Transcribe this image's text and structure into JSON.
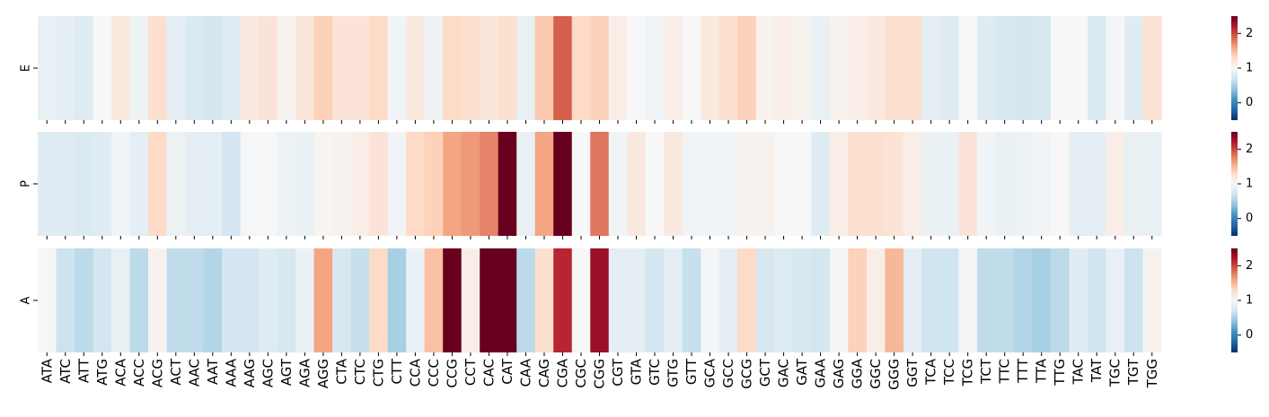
{
  "chart_data": {
    "type": "heatmap",
    "title": "",
    "xlabel": "",
    "ylabel": "",
    "rows": [
      "E",
      "P",
      "A"
    ],
    "categories": [
      "ATA",
      "ATC",
      "ATT",
      "ATG",
      "ACA",
      "ACC",
      "ACG",
      "ACT",
      "AAC",
      "AAT",
      "AAA",
      "AAG",
      "AGC",
      "AGT",
      "AGA",
      "AGG",
      "CTA",
      "CTC",
      "CTG",
      "CTT",
      "CCA",
      "CCC",
      "CCG",
      "CCT",
      "CAC",
      "CAT",
      "CAA",
      "CAG",
      "CGA",
      "CGC",
      "CGG",
      "CGT",
      "GTA",
      "GTC",
      "GTG",
      "GTT",
      "GCA",
      "GCC",
      "GCG",
      "GCT",
      "GAC",
      "GAT",
      "GAA",
      "GAG",
      "GGA",
      "GGC",
      "GGG",
      "GGT",
      "TCA",
      "TCC",
      "TCG",
      "TCT",
      "TTC",
      "TTT",
      "TTA",
      "TTG",
      "TAC",
      "TAT",
      "TGC",
      "TGT",
      "TGG"
    ],
    "values": [
      [
        0.88,
        0.85,
        0.8,
        1.0,
        1.15,
        0.92,
        1.25,
        0.85,
        0.78,
        0.72,
        0.8,
        1.15,
        1.2,
        1.05,
        1.18,
        1.35,
        1.2,
        1.2,
        1.3,
        0.95,
        1.15,
        0.92,
        1.3,
        1.25,
        1.18,
        1.25,
        0.88,
        1.4,
        1.9,
        1.3,
        1.35,
        1.1,
        1.0,
        0.95,
        1.1,
        1.0,
        1.15,
        1.25,
        1.35,
        1.05,
        1.1,
        1.05,
        0.88,
        1.05,
        1.1,
        1.15,
        1.25,
        1.25,
        0.85,
        0.8,
        1.0,
        0.82,
        0.75,
        0.72,
        0.75,
        1.0,
        1.0,
        0.78,
        0.97,
        0.82,
        1.22
      ],
      [
        0.82,
        0.8,
        0.78,
        0.82,
        0.95,
        0.85,
        1.3,
        0.92,
        0.85,
        0.85,
        0.72,
        0.98,
        0.98,
        0.92,
        0.9,
        1.03,
        1.05,
        1.1,
        1.2,
        0.95,
        1.3,
        1.35,
        1.6,
        1.65,
        1.75,
        2.6,
        0.88,
        1.6,
        2.6,
        1.0,
        1.8,
        0.95,
        1.15,
        1.0,
        1.15,
        0.95,
        0.95,
        0.95,
        1.05,
        1.05,
        1.0,
        1.0,
        0.82,
        1.1,
        1.25,
        1.25,
        1.2,
        1.1,
        0.9,
        0.9,
        1.2,
        0.95,
        0.9,
        0.92,
        0.95,
        1.0,
        0.85,
        0.85,
        1.1,
        0.88,
        0.88
      ],
      [
        0.98,
        0.68,
        0.6,
        0.72,
        0.88,
        0.6,
        1.05,
        0.62,
        0.62,
        0.55,
        0.72,
        0.72,
        0.82,
        0.75,
        0.9,
        1.6,
        0.75,
        0.65,
        1.3,
        0.5,
        0.9,
        1.45,
        2.5,
        1.1,
        2.6,
        2.6,
        0.6,
        1.25,
        2.15,
        1.0,
        2.3,
        0.85,
        0.85,
        0.72,
        0.85,
        0.65,
        0.97,
        0.85,
        1.3,
        0.75,
        0.8,
        0.75,
        0.72,
        0.97,
        1.35,
        1.1,
        1.5,
        0.85,
        0.7,
        0.7,
        0.97,
        0.62,
        0.62,
        0.55,
        0.5,
        0.6,
        0.82,
        0.7,
        0.88,
        0.68,
        1.05
      ]
    ],
    "vmin": -0.5,
    "vmax": 2.5,
    "colormap": "RdBu_r",
    "colorbar_ticks": [
      "0",
      "1",
      "2"
    ],
    "grid": false,
    "legend": "colorbar-right"
  }
}
